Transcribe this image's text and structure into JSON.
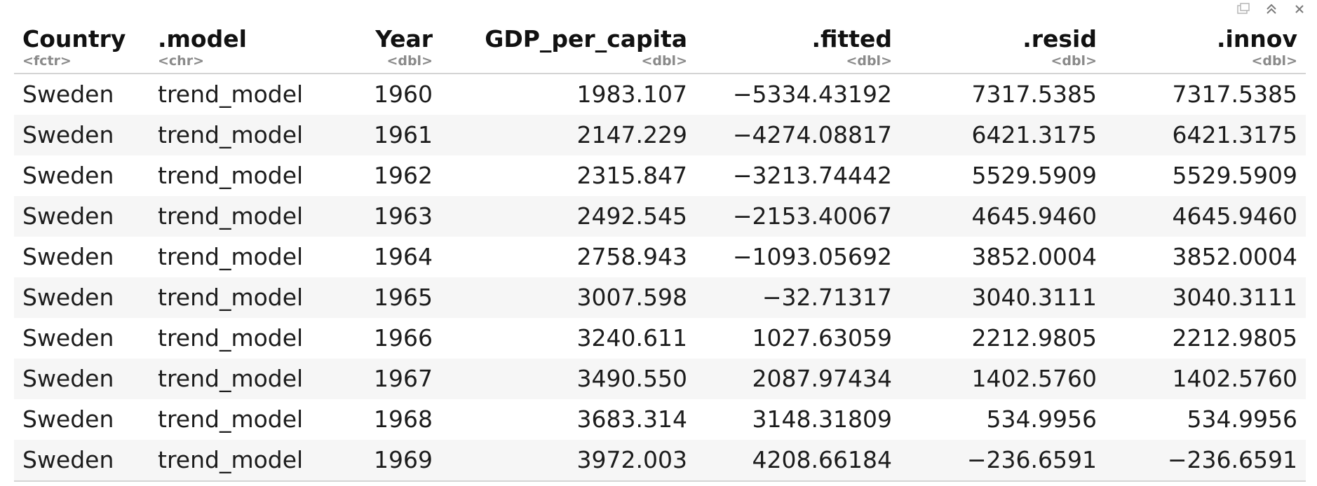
{
  "toolbar": {
    "icons": [
      "export-icon",
      "collapse-icon",
      "close-icon"
    ]
  },
  "table": {
    "columns": [
      {
        "name": "Country",
        "type": "<fctr>",
        "align": "left"
      },
      {
        "name": ".model",
        "type": "<chr>",
        "align": "left"
      },
      {
        "name": "Year",
        "type": "<dbl>",
        "align": "right"
      },
      {
        "name": "GDP_per_capita",
        "type": "<dbl>",
        "align": "right"
      },
      {
        "name": ".fitted",
        "type": "<dbl>",
        "align": "right"
      },
      {
        "name": ".resid",
        "type": "<dbl>",
        "align": "right"
      },
      {
        "name": ".innov",
        "type": "<dbl>",
        "align": "right"
      }
    ],
    "rows": [
      [
        "Sweden",
        "trend_model",
        "1960",
        "1983.107",
        "-5334.43192",
        "7317.5385",
        "7317.5385"
      ],
      [
        "Sweden",
        "trend_model",
        "1961",
        "2147.229",
        "-4274.08817",
        "6421.3175",
        "6421.3175"
      ],
      [
        "Sweden",
        "trend_model",
        "1962",
        "2315.847",
        "-3213.74442",
        "5529.5909",
        "5529.5909"
      ],
      [
        "Sweden",
        "trend_model",
        "1963",
        "2492.545",
        "-2153.40067",
        "4645.9460",
        "4645.9460"
      ],
      [
        "Sweden",
        "trend_model",
        "1964",
        "2758.943",
        "-1093.05692",
        "3852.0004",
        "3852.0004"
      ],
      [
        "Sweden",
        "trend_model",
        "1965",
        "3007.598",
        "-32.71317",
        "3040.3111",
        "3040.3111"
      ],
      [
        "Sweden",
        "trend_model",
        "1966",
        "3240.611",
        "1027.63059",
        "2212.9805",
        "2212.9805"
      ],
      [
        "Sweden",
        "trend_model",
        "1967",
        "3490.550",
        "2087.97434",
        "1402.5760",
        "1402.5760"
      ],
      [
        "Sweden",
        "trend_model",
        "1968",
        "3683.314",
        "3148.31809",
        "534.9956",
        "534.9956"
      ],
      [
        "Sweden",
        "trend_model",
        "1969",
        "3972.003",
        "4208.66184",
        "-236.6591",
        "-236.6591"
      ]
    ]
  }
}
